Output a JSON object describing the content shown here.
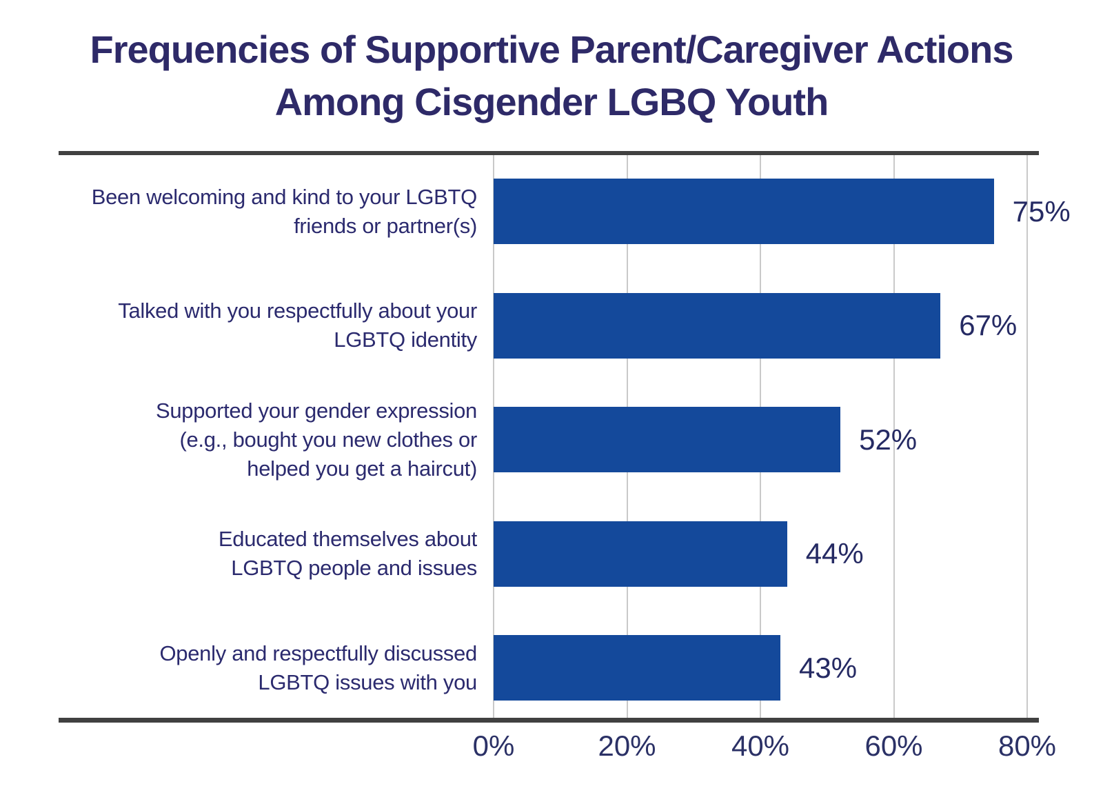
{
  "chart_data": {
    "type": "bar",
    "orientation": "horizontal",
    "title": "Frequencies of Supportive Parent/Caregiver Actions\nAmong Cisgender LGBQ Youth",
    "categories": [
      "Been welcoming and kind to your LGBTQ\nfriends or partner(s)",
      "Talked with you respectfully about your\nLGBTQ identity",
      "Supported your gender expression\n(e.g., bought you new clothes or\nhelped you get a haircut)",
      "Educated themselves about\nLGBTQ people and issues",
      "Openly and respectfully discussed\nLGBTQ issues with you"
    ],
    "values": [
      75,
      67,
      52,
      44,
      43
    ],
    "value_labels": [
      "75%",
      "67%",
      "52%",
      "44%",
      "43%"
    ],
    "x_tick_values": [
      0,
      20,
      40,
      60,
      80
    ],
    "x_tick_labels": [
      "0%",
      "20%",
      "40%",
      "60%",
      "80%"
    ],
    "xlim": [
      0,
      80
    ],
    "grid": "vertical-only",
    "legend": "none",
    "xlabel": "",
    "ylabel": "",
    "colors": {
      "bar": "#14499B",
      "title_text": "#2E2A68",
      "category_text": "#2B2A6E",
      "value_text": "#252A63",
      "tick_text": "#2B3166",
      "gridline": "#C9C9C9",
      "rule_line": "#414141",
      "background": "#FFFFFF"
    }
  }
}
